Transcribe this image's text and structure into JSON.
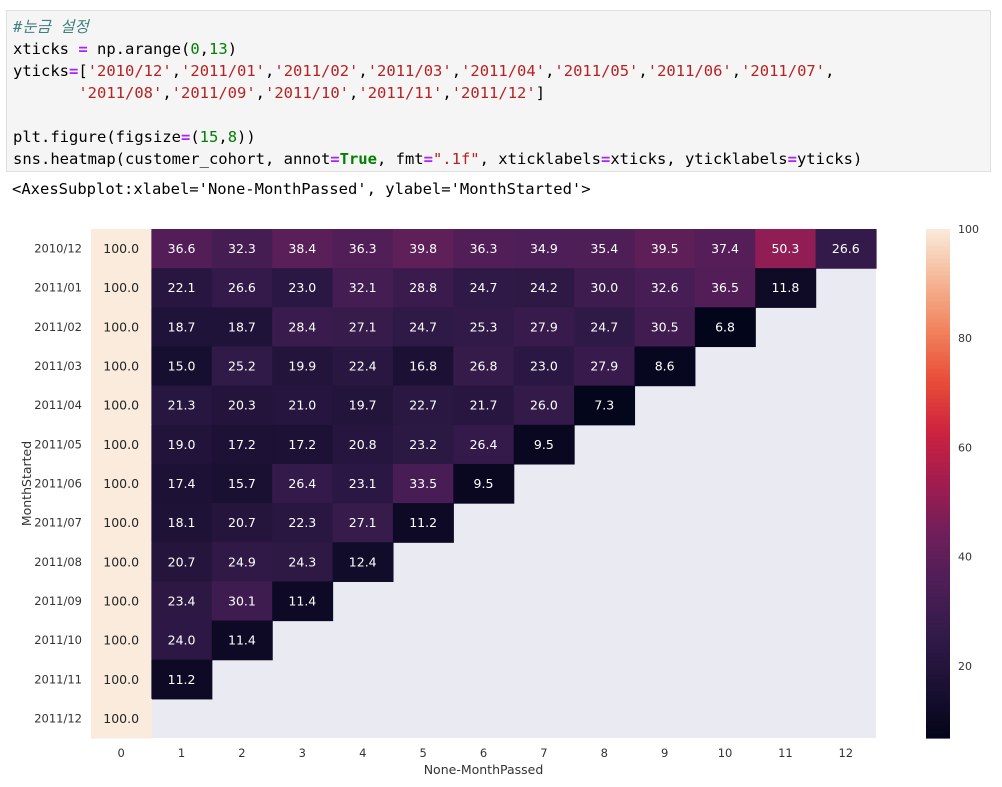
{
  "code_cell": {
    "lines": [
      [
        {
          "t": "#눈금 설정",
          "c": "comment"
        }
      ],
      [
        {
          "t": "xticks "
        },
        {
          "t": "=",
          "c": "op"
        },
        {
          "t": " np.arange("
        },
        {
          "t": "0",
          "c": "num"
        },
        {
          "t": ","
        },
        {
          "t": "13",
          "c": "num"
        },
        {
          "t": ")"
        }
      ],
      [
        {
          "t": "yticks"
        },
        {
          "t": "=",
          "c": "op"
        },
        {
          "t": "["
        },
        {
          "t": "'2010/12'",
          "c": "str"
        },
        {
          "t": ","
        },
        {
          "t": "'2011/01'",
          "c": "str"
        },
        {
          "t": ","
        },
        {
          "t": "'2011/02'",
          "c": "str"
        },
        {
          "t": ","
        },
        {
          "t": "'2011/03'",
          "c": "str"
        },
        {
          "t": ","
        },
        {
          "t": "'2011/04'",
          "c": "str"
        },
        {
          "t": ","
        },
        {
          "t": "'2011/05'",
          "c": "str"
        },
        {
          "t": ","
        },
        {
          "t": "'2011/06'",
          "c": "str"
        },
        {
          "t": ","
        },
        {
          "t": "'2011/07'",
          "c": "str"
        },
        {
          "t": ","
        }
      ],
      [
        {
          "t": "       "
        },
        {
          "t": "'2011/08'",
          "c": "str"
        },
        {
          "t": ","
        },
        {
          "t": "'2011/09'",
          "c": "str"
        },
        {
          "t": ","
        },
        {
          "t": "'2011/10'",
          "c": "str"
        },
        {
          "t": ","
        },
        {
          "t": "'2011/11'",
          "c": "str"
        },
        {
          "t": ","
        },
        {
          "t": "'2011/12'",
          "c": "str"
        },
        {
          "t": "]"
        }
      ],
      [
        {
          "t": " "
        }
      ],
      [
        {
          "t": "plt.figure(figsize"
        },
        {
          "t": "=",
          "c": "op"
        },
        {
          "t": "("
        },
        {
          "t": "15",
          "c": "num"
        },
        {
          "t": ","
        },
        {
          "t": "8",
          "c": "num"
        },
        {
          "t": "))"
        }
      ],
      [
        {
          "t": "sns.heatmap(customer_cohort, annot"
        },
        {
          "t": "=",
          "c": "op"
        },
        {
          "t": "True",
          "c": "kw"
        },
        {
          "t": ", fmt"
        },
        {
          "t": "=",
          "c": "op"
        },
        {
          "t": "\".1f\"",
          "c": "str"
        },
        {
          "t": ", xticklabels"
        },
        {
          "t": "=",
          "c": "op"
        },
        {
          "t": "xticks, yticklabels"
        },
        {
          "t": "=",
          "c": "op"
        },
        {
          "t": "yticks)"
        }
      ]
    ]
  },
  "output_text": "<AxesSubplot:xlabel='None-MonthPassed', ylabel='MonthStarted'>",
  "chart_data": {
    "type": "heatmap",
    "xlabel": "None-MonthPassed",
    "ylabel": "MonthStarted",
    "x_ticklabels": [
      "0",
      "1",
      "2",
      "3",
      "4",
      "5",
      "6",
      "7",
      "8",
      "9",
      "10",
      "11",
      "12"
    ],
    "y_ticklabels": [
      "2010/12",
      "2011/01",
      "2011/02",
      "2011/03",
      "2011/04",
      "2011/05",
      "2011/06",
      "2011/07",
      "2011/08",
      "2011/09",
      "2011/10",
      "2011/11",
      "2011/12"
    ],
    "values": [
      [
        100.0,
        36.6,
        32.3,
        38.4,
        36.3,
        39.8,
        36.3,
        34.9,
        35.4,
        39.5,
        37.4,
        50.3,
        26.6
      ],
      [
        100.0,
        22.1,
        26.6,
        23.0,
        32.1,
        28.8,
        24.7,
        24.2,
        30.0,
        32.6,
        36.5,
        11.8,
        null
      ],
      [
        100.0,
        18.7,
        18.7,
        28.4,
        27.1,
        24.7,
        25.3,
        27.9,
        24.7,
        30.5,
        6.8,
        null,
        null
      ],
      [
        100.0,
        15.0,
        25.2,
        19.9,
        22.4,
        16.8,
        26.8,
        23.0,
        27.9,
        8.6,
        null,
        null,
        null
      ],
      [
        100.0,
        21.3,
        20.3,
        21.0,
        19.7,
        22.7,
        21.7,
        26.0,
        7.3,
        null,
        null,
        null,
        null
      ],
      [
        100.0,
        19.0,
        17.2,
        17.2,
        20.8,
        23.2,
        26.4,
        9.5,
        null,
        null,
        null,
        null,
        null
      ],
      [
        100.0,
        17.4,
        15.7,
        26.4,
        23.1,
        33.5,
        9.5,
        null,
        null,
        null,
        null,
        null,
        null
      ],
      [
        100.0,
        18.1,
        20.7,
        22.3,
        27.1,
        11.2,
        null,
        null,
        null,
        null,
        null,
        null,
        null
      ],
      [
        100.0,
        20.7,
        24.9,
        24.3,
        12.4,
        null,
        null,
        null,
        null,
        null,
        null,
        null,
        null
      ],
      [
        100.0,
        23.4,
        30.1,
        11.4,
        null,
        null,
        null,
        null,
        null,
        null,
        null,
        null,
        null
      ],
      [
        100.0,
        24.0,
        11.4,
        null,
        null,
        null,
        null,
        null,
        null,
        null,
        null,
        null,
        null
      ],
      [
        100.0,
        11.2,
        null,
        null,
        null,
        null,
        null,
        null,
        null,
        null,
        null,
        null,
        null
      ],
      [
        100.0,
        null,
        null,
        null,
        null,
        null,
        null,
        null,
        null,
        null,
        null,
        null,
        null
      ]
    ],
    "colorbar": {
      "min": 6.8,
      "max": 100,
      "ticks": [
        20,
        40,
        60,
        80,
        100
      ]
    },
    "colormap": "rocket",
    "missing_color": "#eaeaf2",
    "grid": false
  }
}
